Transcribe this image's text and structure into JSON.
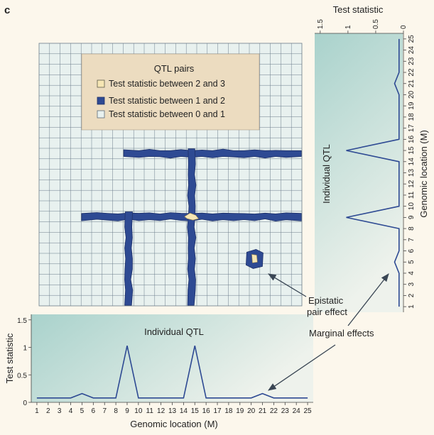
{
  "panel_label": "c",
  "colors": {
    "background": "#fcf7ec",
    "grid_fill": "#e8f1ef",
    "grid_line": "#6b7c8a",
    "blue": "#2e4a93",
    "cream": "#f6e6b4",
    "legend_bg": "#ecdcc0",
    "marginal_bg_dark": "#a9d2cc",
    "marginal_bg_light": "#eef2ec"
  },
  "chart_data": [
    {
      "type": "heatmap",
      "title": "",
      "legend": {
        "title": "QTL pairs",
        "entries": [
          {
            "label": "Test statistic between 2 and 3",
            "color": "#f6e6b4"
          },
          {
            "label": "Test statistic between 1 and 2",
            "color": "#2e4a93"
          },
          {
            "label": "Test statistic between 0 and 1",
            "color": "#e8f1ef"
          }
        ]
      },
      "grid": {
        "rows": 25,
        "cols": 25
      },
      "ridges": [
        {
          "orientation": "horizontal",
          "at": 15,
          "from": 9,
          "to": 25,
          "range": "1-2"
        },
        {
          "orientation": "horizontal",
          "at": 9,
          "from": 5,
          "to": 25,
          "range": "1-2"
        },
        {
          "orientation": "vertical",
          "at": 15,
          "from": 1,
          "to": 15,
          "range": "1-2"
        },
        {
          "orientation": "vertical",
          "at": 9,
          "from": 1,
          "to": 9,
          "range": "1-2"
        }
      ],
      "peaks": [
        {
          "x": 15,
          "y": 9,
          "range": "2-3"
        },
        {
          "x": 21,
          "y": 5,
          "range": "2-3"
        }
      ],
      "annotations": [
        "Epistatic",
        "pair effect"
      ]
    },
    {
      "type": "line",
      "title": "Individual QTL",
      "xlabel": "Genomic location (M)",
      "ylabel": "Test statistic",
      "x": [
        1,
        2,
        3,
        4,
        5,
        6,
        7,
        8,
        9,
        10,
        11,
        12,
        13,
        14,
        15,
        16,
        17,
        18,
        19,
        20,
        21,
        22,
        23,
        24,
        25
      ],
      "values": [
        0.08,
        0.08,
        0.08,
        0.08,
        0.16,
        0.08,
        0.08,
        0.08,
        1.03,
        0.08,
        0.08,
        0.08,
        0.08,
        0.08,
        1.03,
        0.08,
        0.08,
        0.08,
        0.08,
        0.08,
        0.16,
        0.08,
        0.08,
        0.08,
        0.08
      ],
      "yticks": [
        "0",
        "0.5",
        "1",
        "1.5"
      ],
      "ylim": [
        0,
        1.6
      ],
      "xlim": [
        0.5,
        25.5
      ]
    },
    {
      "type": "line",
      "title": "Individual QTL",
      "xlabel": "Test statistic",
      "ylabel": "Genomic location (M)",
      "y": [
        1,
        2,
        3,
        4,
        5,
        6,
        7,
        8,
        9,
        10,
        11,
        12,
        13,
        14,
        15,
        16,
        17,
        18,
        19,
        20,
        21,
        22,
        23,
        24,
        25
      ],
      "values": [
        0.08,
        0.08,
        0.08,
        0.08,
        0.16,
        0.08,
        0.08,
        0.08,
        1.03,
        0.08,
        0.08,
        0.08,
        0.08,
        0.08,
        1.03,
        0.08,
        0.08,
        0.08,
        0.08,
        0.08,
        0.16,
        0.08,
        0.08,
        0.08,
        0.08
      ],
      "xticks": [
        "1.5",
        "1",
        "0.5",
        "0"
      ],
      "xlim": [
        1.6,
        0
      ],
      "ylim": [
        0.5,
        25.5
      ]
    }
  ],
  "annotations": {
    "epistatic_line1": "Epistatic",
    "epistatic_line2": "pair effect",
    "marginal": "Marginal effects"
  }
}
